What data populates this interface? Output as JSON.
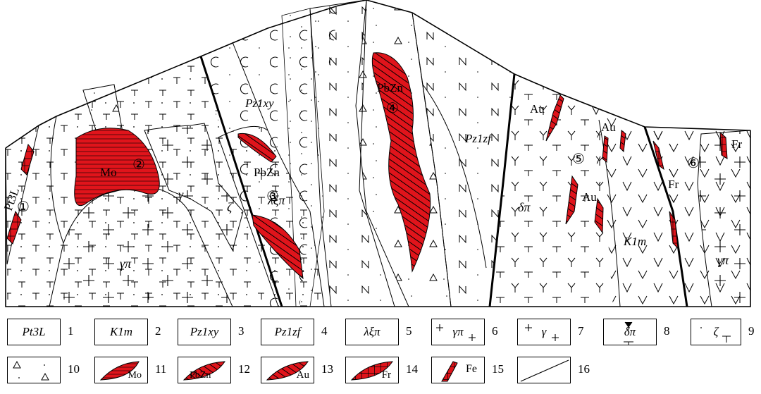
{
  "section": {
    "map_labels": {
      "pt3l": "Pt3L",
      "mo": "Mo",
      "gamma": "γ",
      "gamma_pi": "γπ",
      "zeta": "ζ",
      "pz1xy": "Pz1xy",
      "pbzn_left": "PbZn",
      "lambda_xi_pi": "λξπ",
      "pbzn_top": "PbZn",
      "pz1zf": "Pz1zf",
      "au_1": "Au",
      "au_2": "Au",
      "au_3": "Au",
      "delta_pi": "δπ",
      "k1m": "K1m",
      "fr_1": "Fr",
      "fr_2": "Fr",
      "gamma_pi_right": "γπ"
    },
    "circled_numbers": [
      "①",
      "②",
      "③",
      "④",
      "⑤",
      "⑥"
    ],
    "colors": {
      "ore": "#e0141b",
      "line": "#000000",
      "background": "#ffffff"
    }
  },
  "legend": {
    "items": [
      {
        "num": "1",
        "text": "Pt3L"
      },
      {
        "num": "2",
        "text": "K1m"
      },
      {
        "num": "3",
        "text": "Pz1xy"
      },
      {
        "num": "4",
        "text": "Pz1zf"
      },
      {
        "num": "5",
        "text": "λξπ"
      },
      {
        "num": "6",
        "text": "γπ"
      },
      {
        "num": "7",
        "text": "γ"
      },
      {
        "num": "8",
        "text": "δπ"
      },
      {
        "num": "9",
        "text": "ζ"
      },
      {
        "num": "10",
        "text": ""
      },
      {
        "num": "11",
        "text": "Mo"
      },
      {
        "num": "12",
        "text": "PbZn"
      },
      {
        "num": "13",
        "text": "Au"
      },
      {
        "num": "14",
        "text": "Fr"
      },
      {
        "num": "15",
        "text": "Fe"
      },
      {
        "num": "16",
        "text": ""
      }
    ]
  }
}
